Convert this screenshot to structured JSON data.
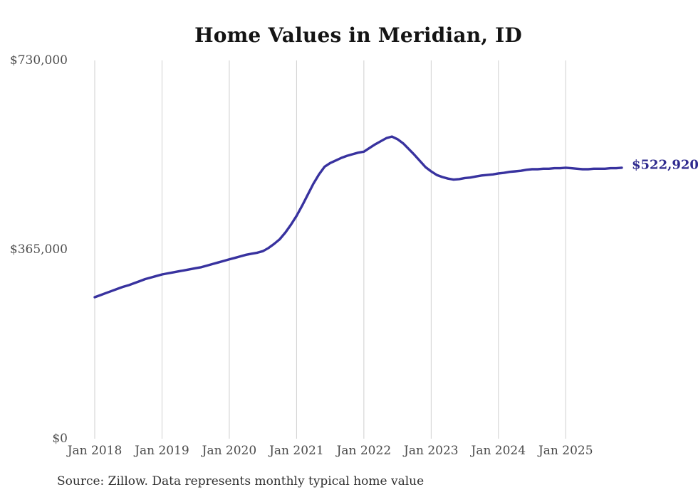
{
  "chart": {
    "title": "Home Values in Meridian, ID",
    "end_label": "$522,920",
    "source_note": "Source: Zillow. Data represents monthly typical home value",
    "colors": {
      "line": "#38329f",
      "end_label_text": "#2e2a8e",
      "gridline": "#cfcfcf",
      "axis_text": "#4f4f4f",
      "title_text": "#141414",
      "source_text": "#2f2f2f",
      "background": "#ffffff"
    }
  },
  "chart_data": {
    "type": "line",
    "title": "Home Values in Meridian, ID",
    "xlabel": "",
    "ylabel": "",
    "ylim": [
      0,
      730000
    ],
    "y_ticks": [
      0,
      365000,
      730000
    ],
    "y_tick_labels": [
      "$0",
      "$365,000",
      "$730,000"
    ],
    "x_tick_labels": [
      "Jan 2018",
      "Jan 2019",
      "Jan 2020",
      "Jan 2021",
      "Jan 2022",
      "Jan 2023",
      "Jan 2024",
      "Jan 2025"
    ],
    "grid": "vertical-only",
    "legend_position": "none",
    "last_point_label": "$522,920",
    "last_value": 522920,
    "series_name": "Typical home value (monthly)",
    "x": [
      "2018-01",
      "2018-02",
      "2018-03",
      "2018-04",
      "2018-05",
      "2018-06",
      "2018-07",
      "2018-08",
      "2018-09",
      "2018-10",
      "2018-11",
      "2018-12",
      "2019-01",
      "2019-02",
      "2019-03",
      "2019-04",
      "2019-05",
      "2019-06",
      "2019-07",
      "2019-08",
      "2019-09",
      "2019-10",
      "2019-11",
      "2019-12",
      "2020-01",
      "2020-02",
      "2020-03",
      "2020-04",
      "2020-05",
      "2020-06",
      "2020-07",
      "2020-08",
      "2020-09",
      "2020-10",
      "2020-11",
      "2020-12",
      "2021-01",
      "2021-02",
      "2021-03",
      "2021-04",
      "2021-05",
      "2021-06",
      "2021-07",
      "2021-08",
      "2021-09",
      "2021-10",
      "2021-11",
      "2021-12",
      "2022-01",
      "2022-02",
      "2022-03",
      "2022-04",
      "2022-05",
      "2022-06",
      "2022-07",
      "2022-08",
      "2022-09",
      "2022-10",
      "2022-11",
      "2022-12",
      "2023-01",
      "2023-02",
      "2023-03",
      "2023-04",
      "2023-05",
      "2023-06",
      "2023-07",
      "2023-08",
      "2023-09",
      "2023-10",
      "2023-11",
      "2023-12",
      "2024-01",
      "2024-02",
      "2024-03",
      "2024-04",
      "2024-05",
      "2024-06",
      "2024-07",
      "2024-08",
      "2024-09",
      "2024-10",
      "2024-11",
      "2024-12",
      "2025-01",
      "2025-02",
      "2025-03",
      "2025-04",
      "2025-05",
      "2025-06",
      "2025-07",
      "2025-08",
      "2025-09",
      "2025-10",
      "2025-11"
    ],
    "values": [
      273000,
      277000,
      281000,
      285000,
      289000,
      293000,
      296000,
      300000,
      304000,
      308000,
      311000,
      314000,
      317000,
      319000,
      321000,
      323000,
      325000,
      327000,
      329000,
      331000,
      334000,
      337000,
      340000,
      343000,
      346000,
      349000,
      352000,
      355000,
      357000,
      359000,
      362000,
      368000,
      376000,
      385000,
      398000,
      413000,
      430000,
      450000,
      471000,
      492000,
      510000,
      525000,
      532000,
      537000,
      542000,
      546000,
      549000,
      552000,
      554000,
      561000,
      568000,
      574000,
      580000,
      583000,
      578000,
      570000,
      559000,
      548000,
      536000,
      524000,
      516000,
      509000,
      505000,
      502000,
      500000,
      501000,
      503000,
      504000,
      506000,
      508000,
      509000,
      510000,
      512000,
      513000,
      515000,
      516000,
      517000,
      519000,
      520000,
      520000,
      521000,
      521000,
      522000,
      522000,
      523000,
      522000,
      521000,
      520000,
      520000,
      521000,
      521000,
      521000,
      522000,
      522000,
      522920
    ]
  }
}
